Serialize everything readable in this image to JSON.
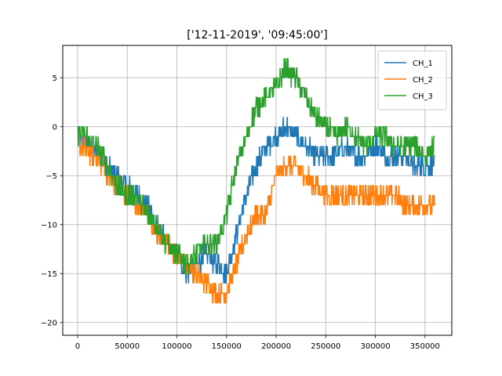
{
  "chart_data": {
    "type": "line",
    "title": "['12-11-2019', '09:45:00']",
    "xlabel": "",
    "ylabel": "",
    "xlim": [
      -15000,
      377000
    ],
    "ylim": [
      -21.3,
      8.3
    ],
    "xticks": [
      0,
      50000,
      100000,
      150000,
      200000,
      250000,
      300000,
      350000
    ],
    "xtick_labels": [
      "0",
      "50000",
      "100000",
      "150000",
      "200000",
      "250000",
      "300000",
      "350000"
    ],
    "yticks": [
      5,
      0,
      -5,
      -10,
      -15,
      -20
    ],
    "ytick_labels": [
      "5",
      "0",
      "−5",
      "−10",
      "−15",
      "−20"
    ],
    "grid": true,
    "legend": "top-right",
    "series": [
      {
        "name": "CH_1",
        "color": "#1f77b4",
        "x": [
          0,
          10000,
          20000,
          30000,
          40000,
          50000,
          60000,
          70000,
          80000,
          90000,
          100000,
          110000,
          120000,
          130000,
          140000,
          150000,
          160000,
          170000,
          180000,
          190000,
          200000,
          210000,
          220000,
          230000,
          240000,
          250000,
          260000,
          270000,
          280000,
          290000,
          300000,
          310000,
          320000,
          330000,
          340000,
          350000,
          360000
        ],
        "values": [
          -1,
          -2,
          -2.5,
          -4,
          -5,
          -6,
          -7,
          -8,
          -10,
          -12,
          -13,
          -15,
          -14,
          -13,
          -14,
          -15,
          -11,
          -7,
          -4,
          -2,
          -1,
          0,
          -1,
          -2,
          -3,
          -3,
          -3,
          -2,
          -3,
          -3,
          -2,
          -3,
          -3,
          -3,
          -4,
          -4,
          -4
        ],
        "noise": 1.0
      },
      {
        "name": "CH_2",
        "color": "#ff7f0e",
        "x": [
          0,
          10000,
          20000,
          30000,
          40000,
          50000,
          60000,
          70000,
          80000,
          90000,
          100000,
          110000,
          120000,
          130000,
          140000,
          150000,
          160000,
          170000,
          180000,
          190000,
          200000,
          210000,
          220000,
          230000,
          240000,
          250000,
          260000,
          270000,
          280000,
          290000,
          300000,
          310000,
          320000,
          330000,
          340000,
          350000,
          360000
        ],
        "values": [
          -1.5,
          -2.5,
          -3,
          -5,
          -6,
          -7,
          -8,
          -9,
          -11,
          -12,
          -13,
          -14,
          -15,
          -16,
          -17,
          -17,
          -14,
          -11,
          -9,
          -9,
          -5,
          -4,
          -4,
          -5,
          -6,
          -7,
          -7,
          -7,
          -7,
          -7,
          -7,
          -7,
          -7,
          -8,
          -8,
          -8,
          -8
        ],
        "noise": 1.0
      },
      {
        "name": "CH_3",
        "color": "#2ca02c",
        "x": [
          0,
          10000,
          20000,
          30000,
          40000,
          50000,
          60000,
          70000,
          80000,
          90000,
          100000,
          110000,
          120000,
          130000,
          140000,
          150000,
          160000,
          170000,
          180000,
          190000,
          200000,
          210000,
          220000,
          230000,
          240000,
          250000,
          260000,
          270000,
          280000,
          290000,
          300000,
          310000,
          320000,
          330000,
          340000,
          350000,
          360000
        ],
        "values": [
          -0.5,
          -1,
          -2,
          -4,
          -6,
          -7,
          -7,
          -9,
          -10,
          -12,
          -13,
          -14,
          -13,
          -12,
          -12,
          -9,
          -4,
          -1,
          2,
          3,
          4,
          6,
          5,
          3,
          1,
          0,
          -1,
          0,
          -1,
          -2,
          -1,
          -1,
          -2,
          -2,
          -2,
          -3,
          -2
        ],
        "noise": 1.0
      }
    ]
  }
}
